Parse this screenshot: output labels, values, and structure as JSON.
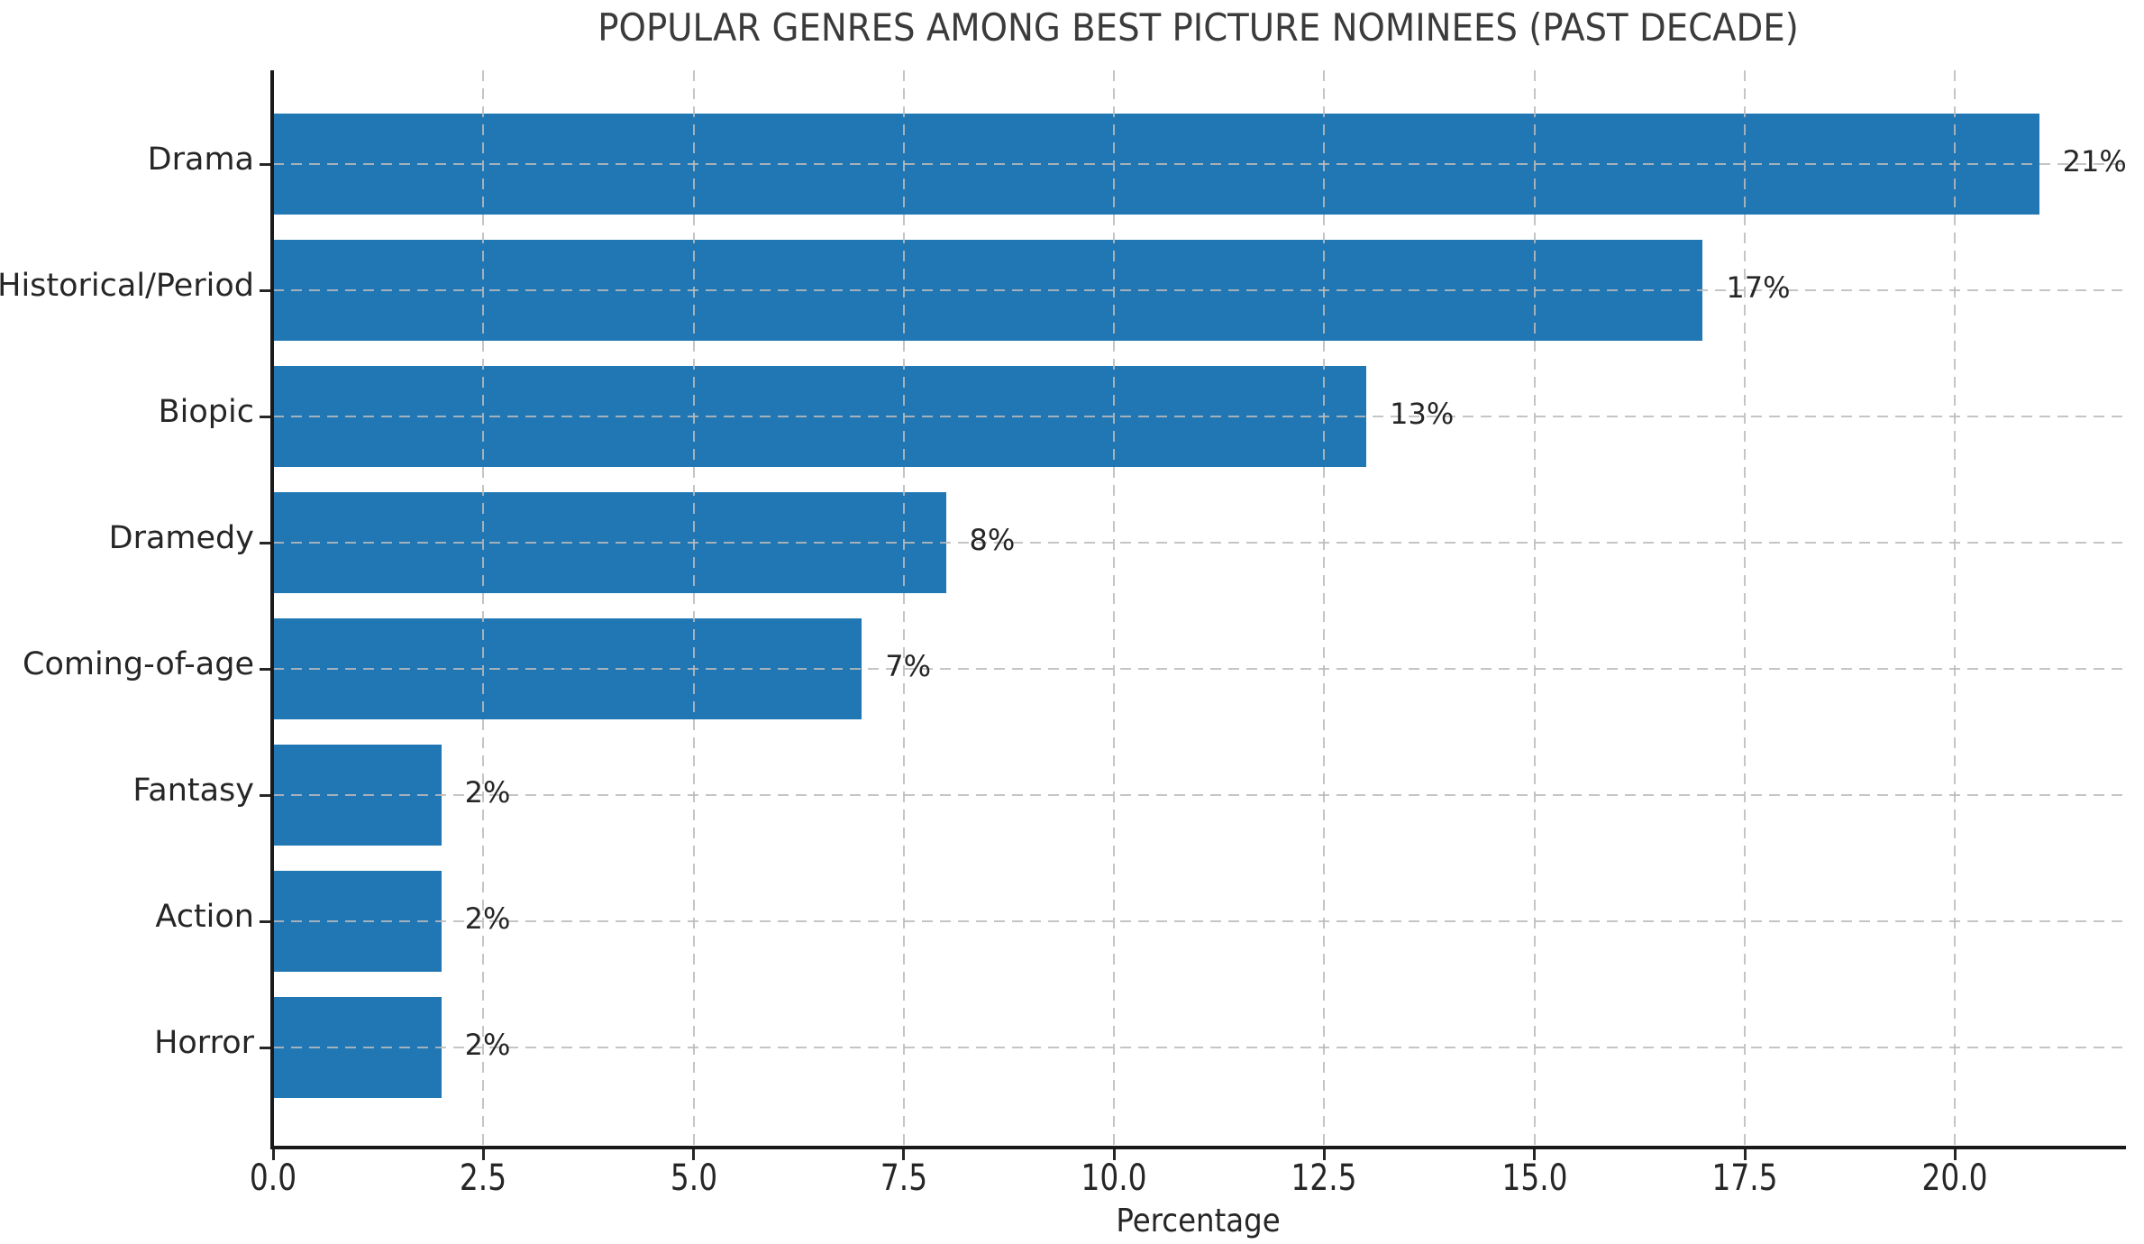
{
  "chart_data": {
    "type": "bar",
    "orientation": "horizontal",
    "title": "POPULAR GENRES AMONG BEST PICTURE NOMINEES (PAST DECADE)",
    "categories": [
      "Drama",
      "Historical/Period",
      "Biopic",
      "Dramedy",
      "Coming-of-age",
      "Fantasy",
      "Action",
      "Horror"
    ],
    "values": [
      21,
      17,
      13,
      8,
      7,
      2,
      2,
      2
    ],
    "bar_labels": [
      "21%",
      "17%",
      "13%",
      "8%",
      "7%",
      "2%",
      "2%",
      "2%"
    ],
    "xlabel": "Percentage",
    "ylabel": "",
    "xlim": [
      0,
      22
    ],
    "xticks": [
      0.0,
      2.5,
      5.0,
      7.5,
      10.0,
      12.5,
      15.0,
      17.5,
      20.0
    ],
    "xtick_labels": [
      "0.0",
      "2.5",
      "5.0",
      "7.5",
      "10.0",
      "12.5",
      "15.0",
      "17.5",
      "20.0"
    ],
    "grid": "dashed gridlines on both axes, drawn above bars",
    "legend_position": "none",
    "colors": {
      "bar": "#2177b4",
      "grid": "#bbbbbb",
      "spine": "#1a1a1a",
      "text": "#262626",
      "title_text": "#3b3b3b",
      "background": "#ffffff"
    }
  }
}
